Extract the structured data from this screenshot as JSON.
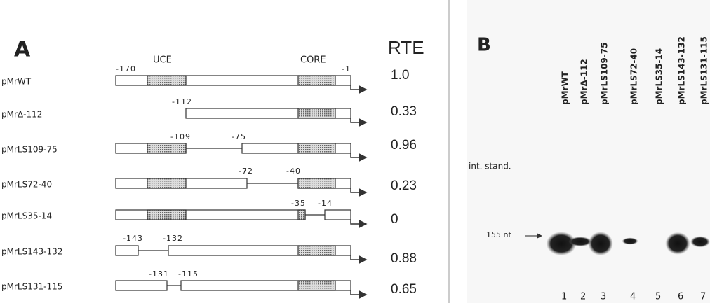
{
  "panel_a": {
    "label": "A",
    "header_uce": "UCE",
    "header_core": "CORE",
    "header_rte": "RTE",
    "rows": [
      {
        "name": "pMrWT",
        "positions": [
          "-170",
          "-1"
        ],
        "rte": "1.0"
      },
      {
        "name": "pMrΔ-112",
        "positions": [
          "-112"
        ],
        "rte": "0.33"
      },
      {
        "name": "pMrLS109-75",
        "positions": [
          "-109",
          "-75"
        ],
        "rte": "0.96"
      },
      {
        "name": "pMrLS72-40",
        "positions": [
          "-72",
          "-40"
        ],
        "rte": "0.23"
      },
      {
        "name": "pMrLS35-14",
        "positions": [
          "-35",
          "-14"
        ],
        "rte": "0"
      },
      {
        "name": "pMrLS143-132",
        "positions": [
          "-143",
          "-132"
        ],
        "rte": "0.88"
      },
      {
        "name": "pMrLS131-115",
        "positions": [
          "-131",
          "-115"
        ],
        "rte": "0.65"
      }
    ]
  },
  "panel_b": {
    "label": "B",
    "lanes": [
      "pMrWT",
      "pMrΔ-112",
      "pMrLS109-75",
      "pMrLS72-40",
      "pMrLS35-14",
      "pMrLS143-132",
      "pMrLS131-115"
    ],
    "internal_standard": "int. stand.",
    "size_marker": "155 nt",
    "lane_numbers": [
      "1",
      "2",
      "3",
      "4",
      "5",
      "6",
      "7"
    ]
  }
}
